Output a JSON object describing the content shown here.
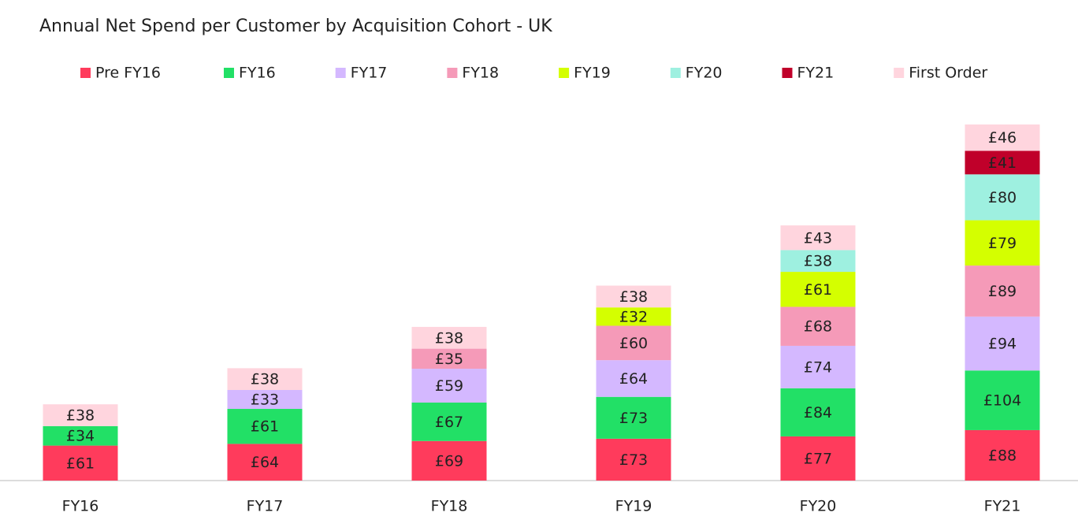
{
  "chart_data": {
    "type": "stacked-bar",
    "title": "Annual Net Spend per Customer by Acquisition Cohort - UK",
    "categories": [
      "FY16",
      "FY17",
      "FY18",
      "FY19",
      "FY20",
      "FY21"
    ],
    "series": [
      {
        "name": "Pre FY16",
        "color": "#ff3b5c",
        "values": [
          61,
          64,
          69,
          73,
          77,
          88
        ],
        "value_labels": [
          "£61",
          "£64",
          "£69",
          "£73",
          "£77",
          "£88"
        ]
      },
      {
        "name": "FY16",
        "color": "#22e066",
        "values": [
          34,
          61,
          67,
          73,
          84,
          104
        ],
        "value_labels": [
          "£34",
          "£61",
          "£67",
          "£73",
          "£84",
          "£104"
        ]
      },
      {
        "name": "FY17",
        "color": "#d4b8ff",
        "values": [
          null,
          33,
          59,
          64,
          74,
          94
        ],
        "value_labels": [
          null,
          "£33",
          "£59",
          "£64",
          "£74",
          "£94"
        ]
      },
      {
        "name": "FY18",
        "color": "#f59ab8",
        "values": [
          null,
          null,
          35,
          60,
          68,
          89
        ],
        "value_labels": [
          null,
          null,
          "£35",
          "£60",
          "£68",
          "£89"
        ]
      },
      {
        "name": "FY19",
        "color": "#d4ff00",
        "values": [
          null,
          null,
          null,
          32,
          61,
          79
        ],
        "value_labels": [
          null,
          null,
          null,
          "£32",
          "£61",
          "£79"
        ]
      },
      {
        "name": "FY20",
        "color": "#9ef0e0",
        "values": [
          null,
          null,
          null,
          null,
          38,
          80
        ],
        "value_labels": [
          null,
          null,
          null,
          null,
          "£38",
          "£80"
        ]
      },
      {
        "name": "FY21",
        "color": "#c0002a",
        "values": [
          null,
          null,
          null,
          null,
          null,
          41
        ],
        "value_labels": [
          null,
          null,
          null,
          null,
          null,
          "£41"
        ]
      },
      {
        "name": "First Order",
        "color": "#ffd5de",
        "values": [
          38,
          38,
          38,
          38,
          43,
          46
        ],
        "value_labels": [
          "£38",
          "£38",
          "£38",
          "£38",
          "£43",
          "£46"
        ]
      }
    ]
  }
}
